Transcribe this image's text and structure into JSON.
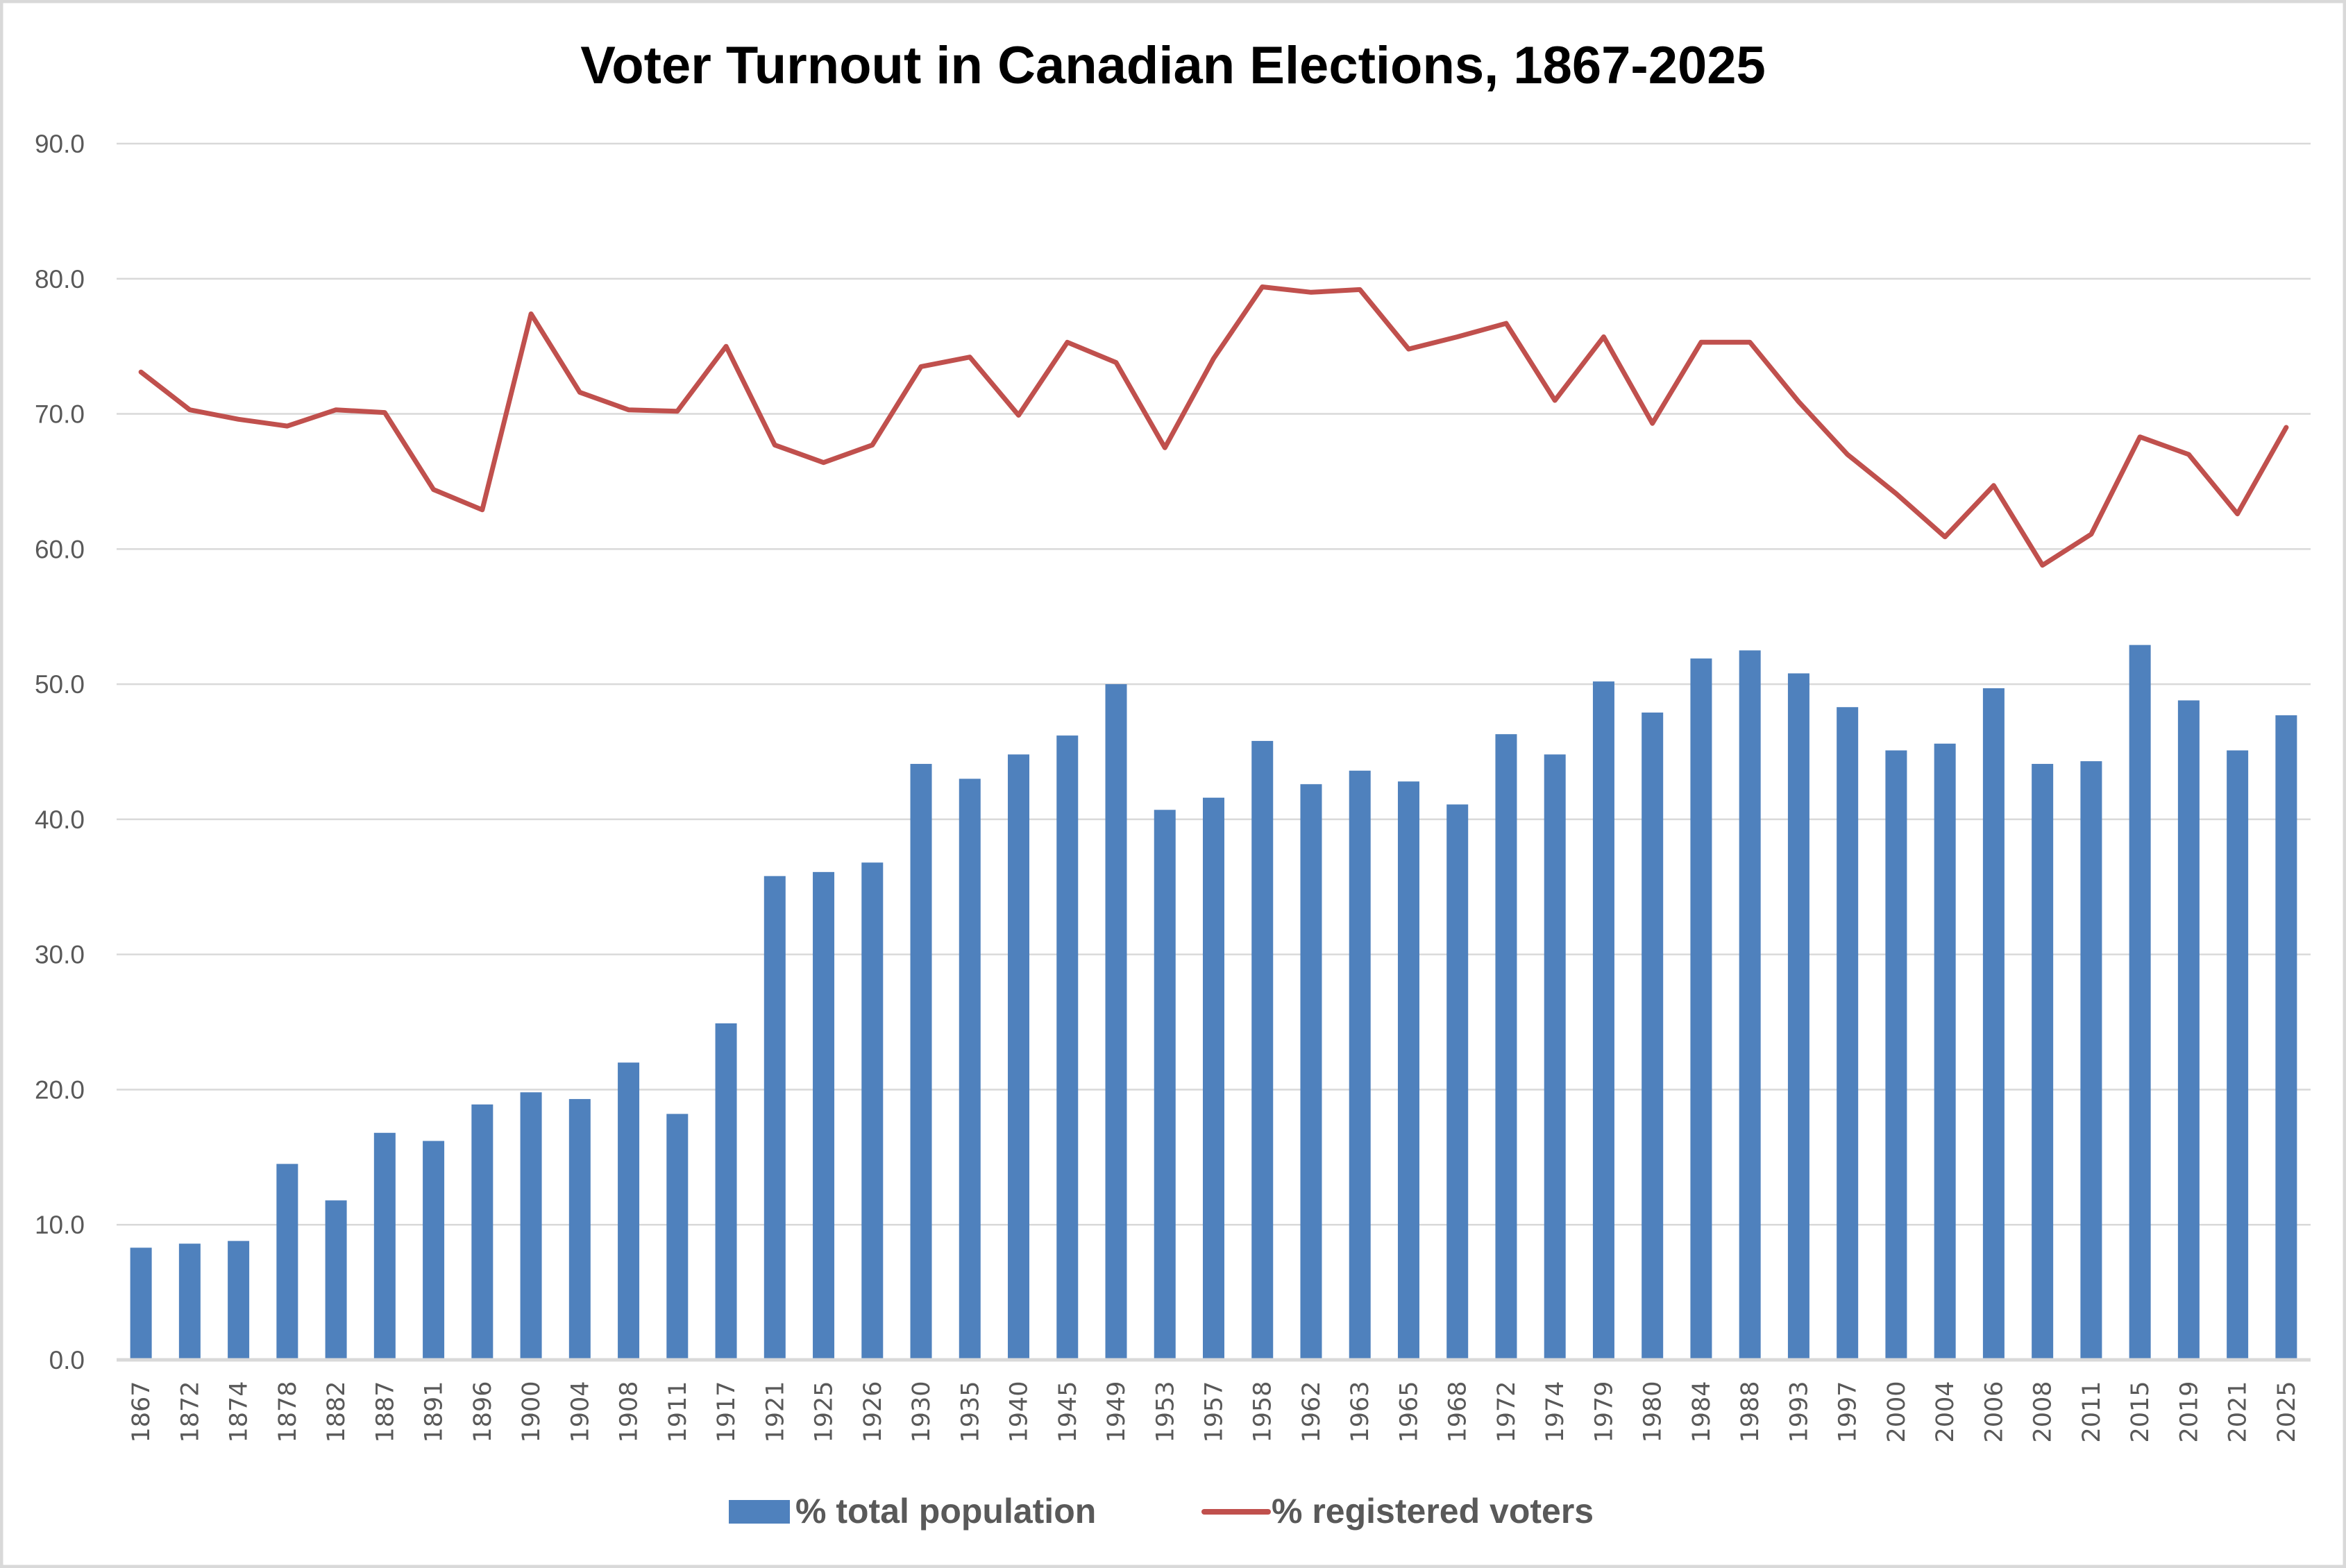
{
  "chart_data": {
    "type": "bar+line",
    "title": "Voter Turnout in Canadian Elections, 1867-2025",
    "xlabel": "",
    "ylabel": "",
    "ylim": [
      0,
      90
    ],
    "yticks": [
      "0.0",
      "10.0",
      "20.0",
      "30.0",
      "40.0",
      "50.0",
      "60.0",
      "70.0",
      "80.0",
      "90.0"
    ],
    "grid": true,
    "legend_position": "bottom",
    "categories": [
      "1867",
      "1872",
      "1874",
      "1878",
      "1882",
      "1887",
      "1891",
      "1896",
      "1900",
      "1904",
      "1908",
      "1911",
      "1917",
      "1921",
      "1925",
      "1926",
      "1930",
      "1935",
      "1940",
      "1945",
      "1949",
      "1953",
      "1957",
      "1958",
      "1962",
      "1963",
      "1965",
      "1968",
      "1972",
      "1974",
      "1979",
      "1980",
      "1984",
      "1988",
      "1993",
      "1997",
      "2000",
      "2004",
      "2006",
      "2008",
      "2011",
      "2015",
      "2019",
      "2021",
      "2025"
    ],
    "series": [
      {
        "name": "% total population",
        "type": "bar",
        "color": "#4f81bd",
        "values": [
          8.3,
          8.6,
          8.8,
          14.5,
          11.8,
          16.8,
          16.2,
          18.9,
          19.8,
          19.3,
          22.0,
          18.2,
          24.9,
          35.8,
          36.1,
          36.8,
          44.1,
          43.0,
          44.8,
          46.2,
          50.0,
          40.7,
          41.6,
          45.8,
          42.6,
          43.6,
          42.8,
          41.1,
          46.3,
          44.8,
          50.2,
          47.9,
          51.9,
          52.5,
          50.8,
          48.3,
          45.1,
          45.6,
          49.7,
          44.1,
          44.3,
          52.9,
          48.8,
          45.1,
          47.7
        ]
      },
      {
        "name": "% registered voters",
        "type": "line",
        "color": "#c0504d",
        "values": [
          73.1,
          70.3,
          69.6,
          69.1,
          70.3,
          70.1,
          64.4,
          62.9,
          77.4,
          71.6,
          70.3,
          70.2,
          75.0,
          67.7,
          66.4,
          67.7,
          73.5,
          74.2,
          69.9,
          75.3,
          73.8,
          67.5,
          74.1,
          79.4,
          79.0,
          79.2,
          74.8,
          75.7,
          76.7,
          71.0,
          75.7,
          69.3,
          75.3,
          75.3,
          70.9,
          67.0,
          64.1,
          60.9,
          64.7,
          58.8,
          61.1,
          68.3,
          67.0,
          62.6,
          69.0
        ]
      }
    ]
  }
}
